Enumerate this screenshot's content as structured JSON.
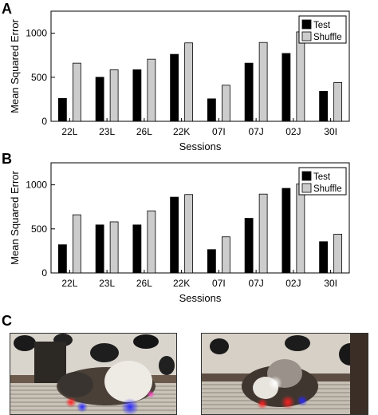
{
  "panels": [
    {
      "letter": "A",
      "chart_data": {
        "type": "bar",
        "ylabel": "Mean Squared Error",
        "xlabel": "Sessions",
        "categories": [
          "22L",
          "23L",
          "26L",
          "22K",
          "07I",
          "07J",
          "02J",
          "30I"
        ],
        "yticks": [
          0,
          500,
          1000
        ],
        "ylim": [
          0,
          1250
        ],
        "grid": false,
        "legend_position": "top-right",
        "series": [
          {
            "name": "Test",
            "color": "#000000",
            "values": [
              260,
              500,
              585,
              760,
              255,
              660,
              770,
              340
            ]
          },
          {
            "name": "Shuffle",
            "color": "#cccccc",
            "values": [
              660,
              585,
              705,
              890,
              410,
              895,
              1015,
              440
            ]
          }
        ]
      }
    },
    {
      "letter": "B",
      "chart_data": {
        "type": "bar",
        "ylabel": "Mean Squared Error",
        "xlabel": "Sessions",
        "categories": [
          "22L",
          "23L",
          "26L",
          "22K",
          "07I",
          "07J",
          "02J",
          "30I"
        ],
        "yticks": [
          0,
          500,
          1000
        ],
        "ylim": [
          0,
          1250
        ],
        "grid": false,
        "legend_position": "top-right",
        "series": [
          {
            "name": "Test",
            "color": "#000000",
            "values": [
              320,
              545,
              545,
              860,
              265,
              620,
              960,
              355
            ]
          },
          {
            "name": "Shuffle",
            "color": "#cccccc",
            "values": [
              660,
              580,
              705,
              890,
              410,
              895,
              1010,
              440
            ]
          }
        ]
      }
    }
  ],
  "panel_c": {
    "letter": "C",
    "images": [
      {
        "description": "mouse-tracking-frame-left",
        "markers": [
          "#ff2020",
          "#3030ff",
          "#ff40c0"
        ]
      },
      {
        "description": "mouse-tracking-frame-right",
        "markers": [
          "#ffffff",
          "#ff2020",
          "#3030ff"
        ]
      }
    ]
  }
}
